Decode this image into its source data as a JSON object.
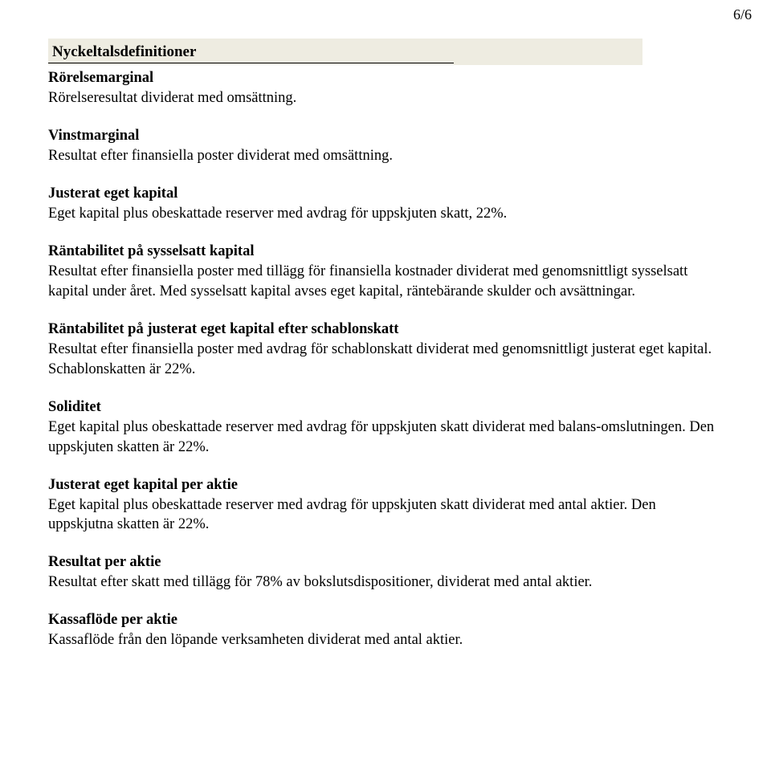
{
  "pageNumber": "6/6",
  "title": "Nyckeltalsdefinitioner",
  "firstSubheading": "Rörelsemarginal",
  "firstBody": "Rörelseresultat dividerat med omsättning.",
  "sections": [
    {
      "heading": "Vinstmarginal",
      "body": "Resultat efter finansiella poster dividerat med omsättning."
    },
    {
      "heading": "Justerat eget kapital",
      "body": "Eget kapital plus obeskattade reserver med avdrag för uppskjuten skatt, 22%."
    },
    {
      "heading": "Räntabilitet på sysselsatt kapital",
      "body": "Resultat efter finansiella poster med tillägg för finansiella kostnader dividerat med genomsnittligt sysselsatt kapital under året. Med sysselsatt kapital avses eget kapital, räntebärande skulder och avsättningar."
    },
    {
      "heading": "Räntabilitet på justerat eget kapital efter schablonskatt",
      "body": "Resultat efter finansiella poster med avdrag för schablonskatt dividerat med genomsnittligt justerat eget kapital. Schablonskatten är 22%."
    },
    {
      "heading": "Soliditet",
      "body": "Eget kapital plus obeskattade reserver med avdrag för uppskjuten skatt dividerat med balans-omslutningen. Den uppskjuten skatten är 22%."
    },
    {
      "heading": "Justerat eget kapital per aktie",
      "body": "Eget kapital plus obeskattade reserver med avdrag för uppskjuten skatt dividerat med antal aktier. Den uppskjutna skatten är 22%."
    },
    {
      "heading": "Resultat per aktie",
      "body": "Resultat efter skatt med tillägg för 78% av bokslutsdispositioner, dividerat med antal aktier."
    },
    {
      "heading": "Kassaflöde per aktie",
      "body": "Kassaflöde från den löpande verksamheten dividerat med antal aktier."
    }
  ]
}
